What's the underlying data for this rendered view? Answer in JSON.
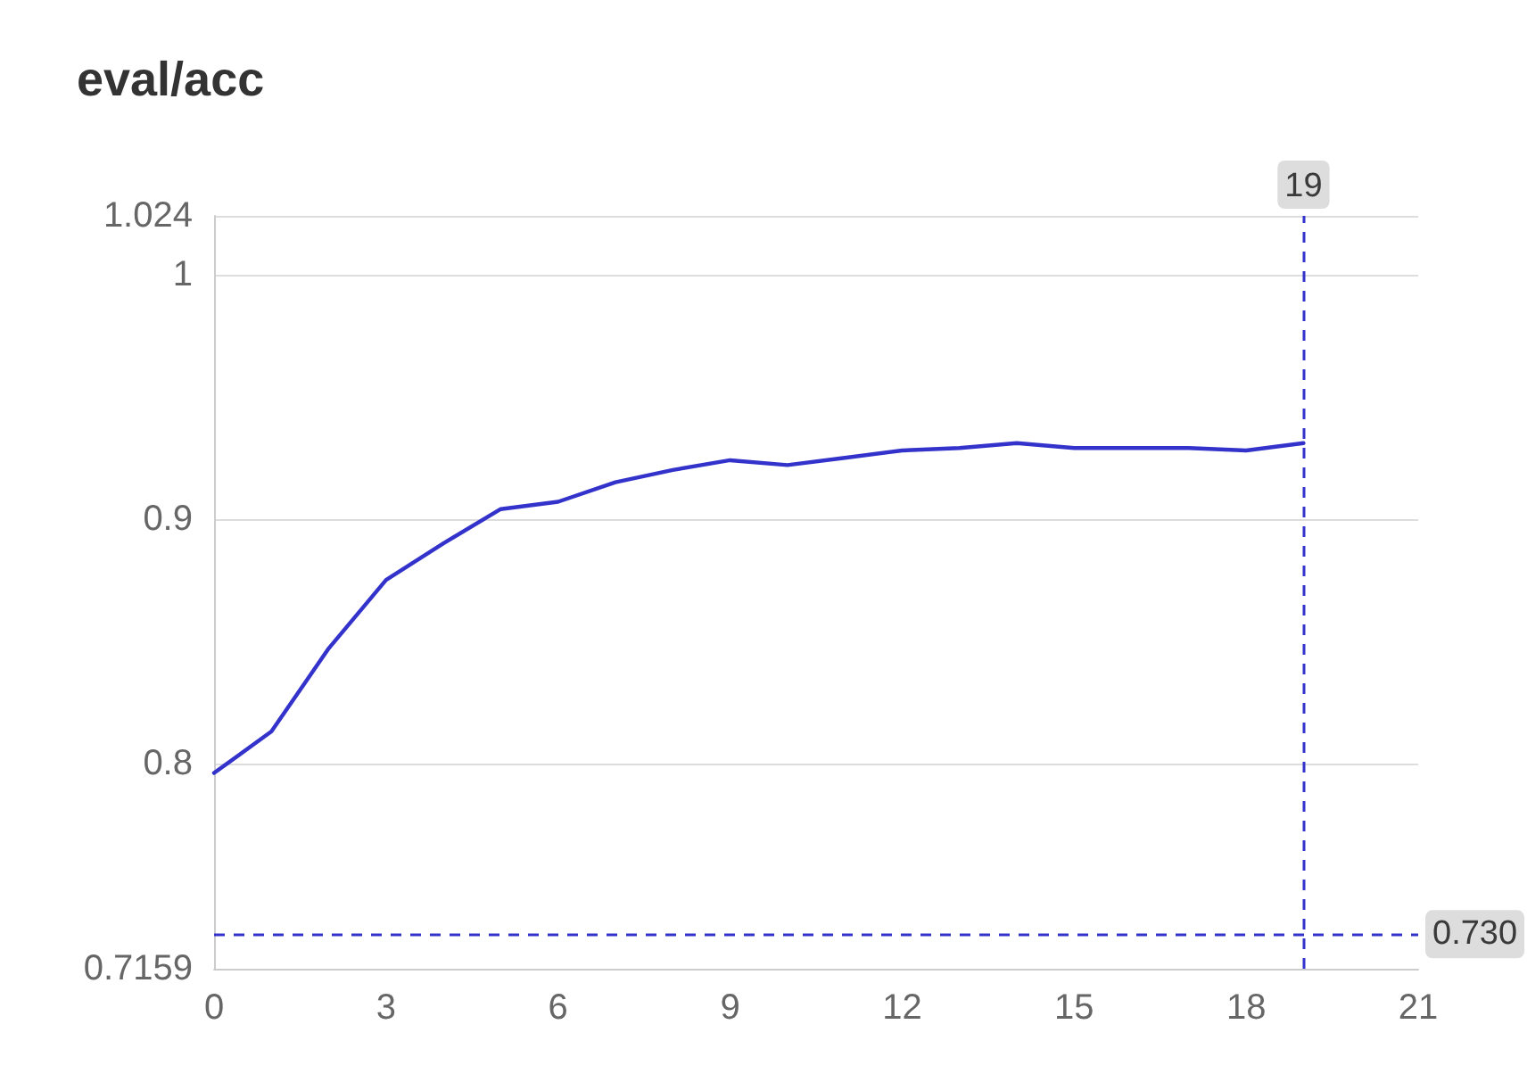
{
  "chart_data": {
    "type": "line",
    "title": "eval/acc",
    "x": [
      0,
      1,
      2,
      3,
      4,
      5,
      6,
      7,
      8,
      9,
      10,
      11,
      12,
      13,
      14,
      15,
      16,
      17,
      18,
      19
    ],
    "values": [
      0.796,
      0.813,
      0.847,
      0.875,
      0.89,
      0.904,
      0.907,
      0.915,
      0.92,
      0.924,
      0.922,
      0.925,
      0.928,
      0.929,
      0.931,
      0.929,
      0.929,
      0.929,
      0.928,
      0.931
    ],
    "color": "#3333cc",
    "marker": "none",
    "grid": "y",
    "xlim": [
      0,
      21
    ],
    "xticks": [
      0,
      3,
      6,
      9,
      12,
      15,
      18,
      21
    ],
    "ylim": [
      0.7159,
      1.024
    ],
    "yticks": [
      0.7159,
      0.8,
      0.9,
      1,
      1.024
    ],
    "ref_lines": [
      {
        "axis": "x",
        "value": 19,
        "label": "19",
        "color": "#3333cc",
        "line_style": "dashed"
      },
      {
        "axis": "y",
        "value": 0.73,
        "label": "0.730",
        "color": "#3333cc",
        "line_style": "dashed"
      }
    ]
  }
}
